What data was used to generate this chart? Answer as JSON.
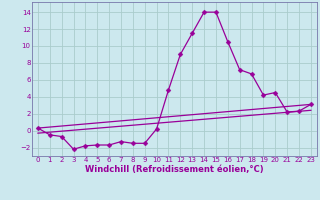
{
  "xlabel": "Windchill (Refroidissement éolien,°C)",
  "background_color": "#cce8ee",
  "grid_color": "#aacccc",
  "line_color": "#990099",
  "spine_color": "#7777aa",
  "xlim": [
    -0.5,
    23.5
  ],
  "ylim": [
    -3.0,
    15.2
  ],
  "xticks": [
    0,
    1,
    2,
    3,
    4,
    5,
    6,
    7,
    8,
    9,
    10,
    11,
    12,
    13,
    14,
    15,
    16,
    17,
    18,
    19,
    20,
    21,
    22,
    23
  ],
  "yticks": [
    -2,
    0,
    2,
    4,
    6,
    8,
    10,
    12,
    14
  ],
  "main_series_x": [
    0,
    1,
    2,
    3,
    4,
    5,
    6,
    7,
    8,
    9,
    10,
    11,
    12,
    13,
    14,
    15,
    16,
    17,
    18,
    19,
    20,
    21,
    22,
    23
  ],
  "main_series_y": [
    0.3,
    -0.5,
    -0.7,
    -2.2,
    -1.8,
    -1.7,
    -1.7,
    -1.3,
    -1.5,
    -1.5,
    0.2,
    4.8,
    9.0,
    11.5,
    14.0,
    14.0,
    10.5,
    7.2,
    6.7,
    4.2,
    4.5,
    2.2,
    2.3,
    3.1
  ],
  "line1_x": [
    0,
    23
  ],
  "line1_y": [
    0.3,
    3.1
  ],
  "line2_x": [
    0,
    23
  ],
  "line2_y": [
    -0.3,
    2.4
  ],
  "marker_size": 2.5,
  "line_width": 0.9,
  "font_size_ticks": 5.0,
  "font_size_xlabel": 6.0
}
